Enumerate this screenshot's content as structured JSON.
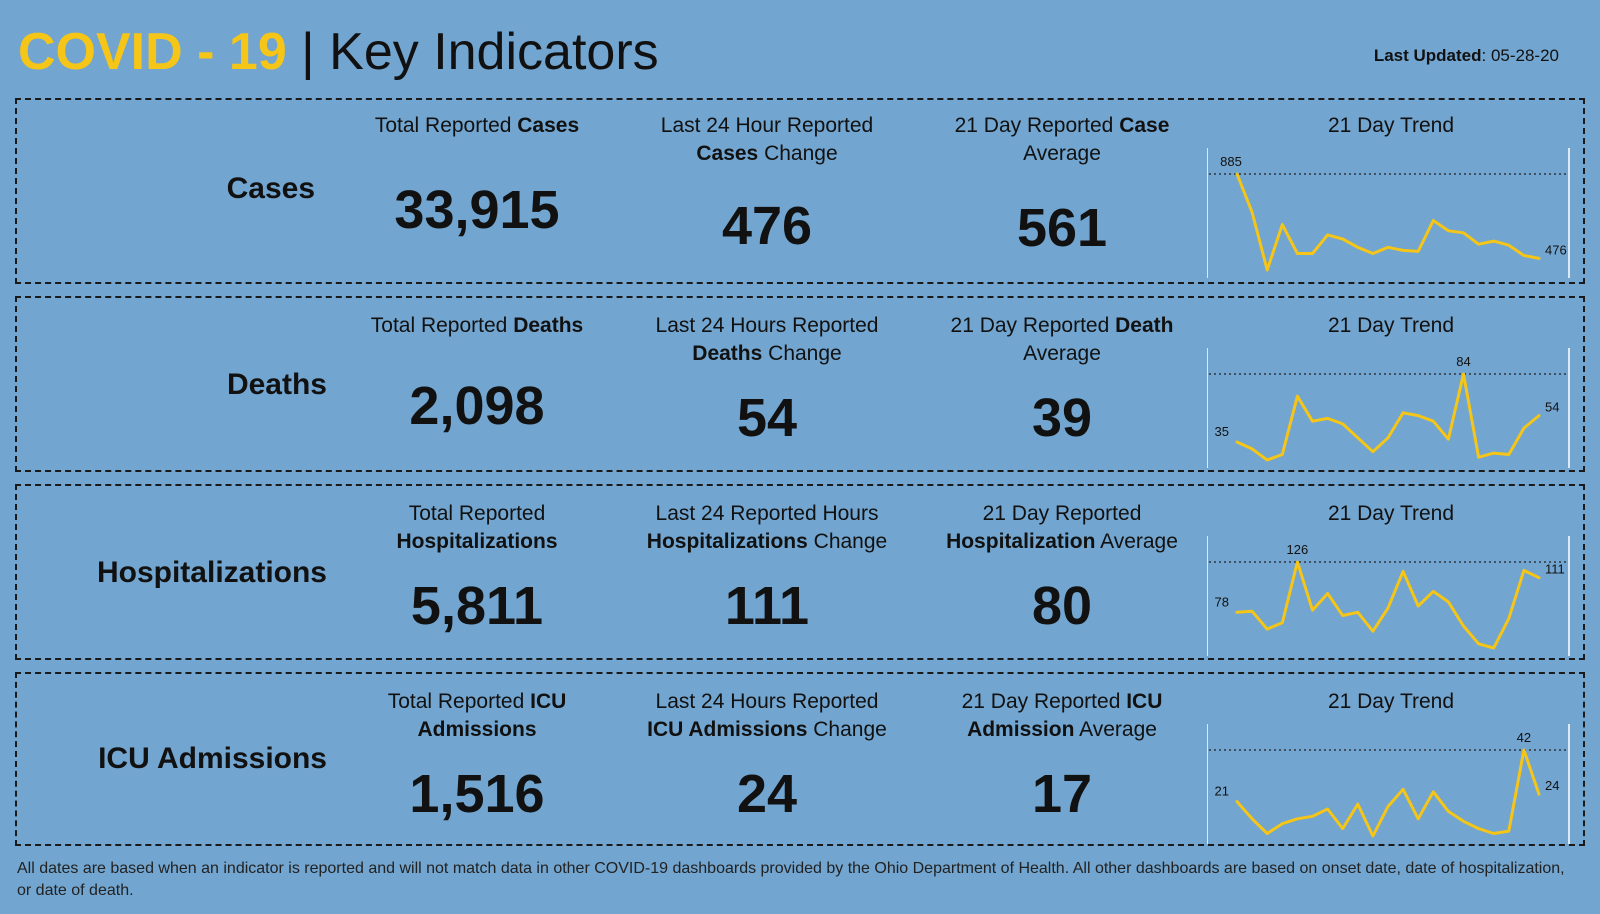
{
  "header": {
    "title_accent": "COVID - 19",
    "title_sep": " | ",
    "title_main": "Key Indicators",
    "updated_label": "Last Updated",
    "updated_value": ": 05-28-20"
  },
  "trend_label": "21 Day Trend",
  "colors": {
    "background": "#72a5cf",
    "accent": "#f5c518",
    "line": "#f5c518"
  },
  "panels": [
    {
      "label": "Cases",
      "total": {
        "pre": "Total Reported ",
        "bold": "Cases",
        "post": "",
        "value": "33,915"
      },
      "change": {
        "line1": "Last 24 Hour Reported",
        "bold": "Cases",
        "post": " Change",
        "value": "476"
      },
      "avg": {
        "pre": "21 Day Reported ",
        "bold": "Case",
        "line2": "Average",
        "value": "561"
      },
      "trend": {
        "series": [
          885,
          700,
          420,
          640,
          500,
          500,
          590,
          570,
          530,
          500,
          530,
          515,
          510,
          660,
          610,
          600,
          545,
          560,
          540,
          490,
          476
        ],
        "max_label": "885",
        "max_index": 0,
        "end_label": "476"
      }
    },
    {
      "label": "Deaths",
      "total": {
        "pre": "Total Reported ",
        "bold": "Deaths",
        "post": "",
        "value": "2,098"
      },
      "change": {
        "line1": "Last 24 Hours Reported",
        "bold": "Deaths",
        "post": " Change",
        "value": "54"
      },
      "avg": {
        "pre": "21 Day Reported ",
        "bold": "Death",
        "line2": "Average",
        "value": "39"
      },
      "trend": {
        "series": [
          35,
          30,
          22,
          26,
          68,
          50,
          52,
          48,
          38,
          28,
          38,
          56,
          54,
          50,
          37,
          84,
          24,
          27,
          26,
          45,
          54
        ],
        "start_label": "35",
        "max_label": "84",
        "max_index": 15,
        "end_label": "54"
      }
    },
    {
      "label": "Hospitalizations",
      "total": {
        "line1": "Total Reported",
        "bold": "Hospitalizations",
        "post": "",
        "value": "5,811"
      },
      "change": {
        "line1": "Last 24 Reported Hours",
        "bold": "Hospitalizations",
        "post": " Change",
        "value": "111"
      },
      "avg": {
        "line1": "21 Day Reported",
        "bold": "Hospitalization",
        "post": " Average",
        "value": "80"
      },
      "trend": {
        "series": [
          78,
          79,
          62,
          68,
          126,
          80,
          96,
          75,
          78,
          60,
          82,
          117,
          84,
          98,
          88,
          65,
          48,
          44,
          72,
          118,
          111
        ],
        "start_label": "78",
        "max_label": "126",
        "max_index": 4,
        "end_label": "111"
      }
    },
    {
      "label": "ICU Admissions",
      "total": {
        "pre": "Total Reported ",
        "bold": "ICU",
        "line2bold": "Admissions",
        "value": "1,516"
      },
      "change": {
        "line1": "Last 24 Hours Reported",
        "bold": "ICU Admissions",
        "post": " Change",
        "value": "24"
      },
      "avg": {
        "pre": "21 Day Reported ",
        "bold": "ICU",
        "line2bold": "Admission",
        "line2": " Average",
        "value": "17"
      },
      "trend": {
        "series": [
          21,
          14,
          8,
          12,
          14,
          15,
          18,
          10,
          20,
          7,
          19,
          26,
          14,
          25,
          17,
          13,
          10,
          8,
          9,
          42,
          24
        ],
        "start_label": "21",
        "max_label": "42",
        "max_index": 19,
        "end_label": "24"
      }
    }
  ],
  "footnote": "All dates are based when an indicator is reported and will not match data in other COVID-19 dashboards provided by the Ohio Department of Health. All other dashboards are based on onset date, date of hospitalization, or date of death."
}
